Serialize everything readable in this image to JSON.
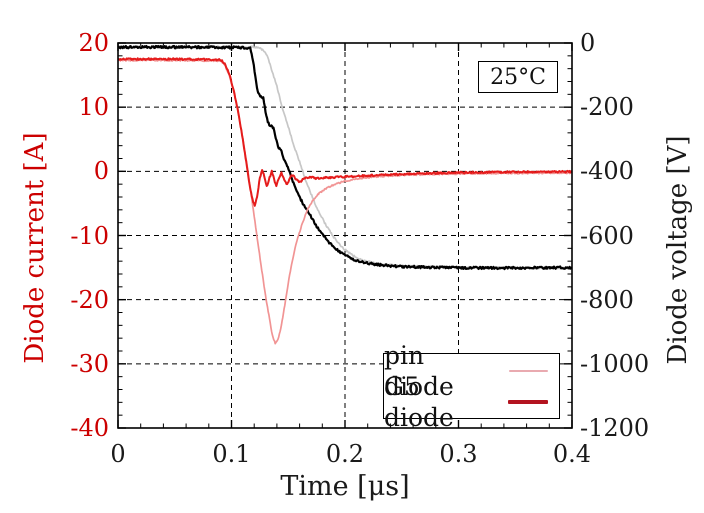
{
  "page": {
    "background": "#ffffff"
  },
  "annotation_box": {
    "text": "25°C"
  },
  "axis_titles": {
    "x": "Time [μs]",
    "y_left": "Diode current [A]",
    "y_right": "Diode voltage [V]"
  },
  "legend": {
    "items": [
      {
        "label": "pin diode",
        "sample_color": "#e9aab0",
        "sample_thickness": 2
      },
      {
        "label": "G5 diode",
        "sample_color": "#b3131f",
        "sample_thickness": 4
      }
    ]
  },
  "colors": {
    "left_axis_text": "#cc0000",
    "right_axis_text": "#1a1a1a",
    "grid": "#000000",
    "border": "#000000"
  },
  "chart_data": {
    "type": "line",
    "title": "",
    "xlabel": "Time [μs]",
    "ylabel_left": "Diode current [A]",
    "ylabel_right": "Diode voltage [V]",
    "annotation": "25°C",
    "grid": true,
    "legend_position": "bottom-right",
    "x_range": [
      0,
      0.4
    ],
    "y_left_range": [
      -40,
      20
    ],
    "y_right_range": [
      -1200,
      0
    ],
    "x_ticks": {
      "values": [
        0,
        0.1,
        0.2,
        0.3,
        0.4
      ],
      "labels": [
        "0",
        "0.1",
        "0.2",
        "0.3",
        "0.4"
      ]
    },
    "y_left_ticks": {
      "values": [
        20,
        10,
        0,
        -10,
        -20,
        -30,
        -40
      ],
      "labels": [
        "20",
        "10",
        "0",
        "-10",
        "-20",
        "-30",
        "-40"
      ]
    },
    "y_right_ticks": {
      "values": [
        0,
        -200,
        -400,
        -600,
        -800,
        -1000,
        -1200
      ],
      "labels": [
        "0",
        "-200",
        "-400",
        "-600",
        "-800",
        "-1000",
        "-1200"
      ]
    },
    "x_minor_step": 0.02,
    "y_minor_step_left": 2,
    "series": [
      {
        "name": "pin diode voltage",
        "axis": "right",
        "color": "#c7c7c7",
        "width": 1.7,
        "noise": 3,
        "seed": 11,
        "points": [
          [
            0,
            -12
          ],
          [
            0.06,
            -12
          ],
          [
            0.118,
            -12
          ],
          [
            0.124,
            -14
          ],
          [
            0.128,
            -22
          ],
          [
            0.132,
            -45
          ],
          [
            0.136,
            -90
          ],
          [
            0.14,
            -135
          ],
          [
            0.145,
            -205
          ],
          [
            0.15,
            -260
          ],
          [
            0.155,
            -320
          ],
          [
            0.16,
            -370
          ],
          [
            0.165,
            -425
          ],
          [
            0.17,
            -470
          ],
          [
            0.176,
            -520
          ],
          [
            0.182,
            -560
          ],
          [
            0.19,
            -605
          ],
          [
            0.198,
            -638
          ],
          [
            0.206,
            -660
          ],
          [
            0.215,
            -676
          ],
          [
            0.228,
            -688
          ],
          [
            0.25,
            -695
          ],
          [
            0.28,
            -698
          ],
          [
            0.32,
            -700
          ],
          [
            0.4,
            -702
          ]
        ]
      },
      {
        "name": "G5 diode voltage",
        "axis": "right",
        "color": "#000000",
        "width": 2.2,
        "noise": 4,
        "seed": 23,
        "points": [
          [
            0,
            -13
          ],
          [
            0.08,
            -13
          ],
          [
            0.1165,
            -15
          ],
          [
            0.119,
            -55
          ],
          [
            0.121,
            -105
          ],
          [
            0.1225,
            -140
          ],
          [
            0.124,
            -160
          ],
          [
            0.1265,
            -168
          ],
          [
            0.128,
            -172
          ],
          [
            0.13,
            -215
          ],
          [
            0.132,
            -248
          ],
          [
            0.134,
            -258
          ],
          [
            0.137,
            -263
          ],
          [
            0.139,
            -295
          ],
          [
            0.141,
            -325
          ],
          [
            0.1435,
            -330
          ],
          [
            0.146,
            -360
          ],
          [
            0.149,
            -385
          ],
          [
            0.1515,
            -402
          ],
          [
            0.154,
            -430
          ],
          [
            0.157,
            -458
          ],
          [
            0.16,
            -480
          ],
          [
            0.1635,
            -505
          ],
          [
            0.167,
            -522
          ],
          [
            0.171,
            -548
          ],
          [
            0.175,
            -572
          ],
          [
            0.18,
            -596
          ],
          [
            0.186,
            -622
          ],
          [
            0.192,
            -642
          ],
          [
            0.199,
            -660
          ],
          [
            0.207,
            -674
          ],
          [
            0.216,
            -684
          ],
          [
            0.228,
            -691
          ],
          [
            0.245,
            -696
          ],
          [
            0.27,
            -699
          ],
          [
            0.31,
            -701
          ],
          [
            0.36,
            -701
          ],
          [
            0.4,
            -700
          ]
        ]
      },
      {
        "name": "pin diode current",
        "axis": "left",
        "color": "#f19494",
        "width": 1.7,
        "noise": 0.12,
        "seed": 37,
        "points": [
          [
            0,
            17.3
          ],
          [
            0.05,
            17.3
          ],
          [
            0.0905,
            17.2
          ],
          [
            0.094,
            16.6
          ],
          [
            0.098,
            15
          ],
          [
            0.102,
            12.4
          ],
          [
            0.106,
            9
          ],
          [
            0.11,
            5
          ],
          [
            0.114,
            0.6
          ],
          [
            0.118,
            -4.4
          ],
          [
            0.122,
            -9.6
          ],
          [
            0.126,
            -14.6
          ],
          [
            0.13,
            -19.4
          ],
          [
            0.1335,
            -23
          ],
          [
            0.136,
            -25.6
          ],
          [
            0.1385,
            -26.8
          ],
          [
            0.141,
            -26.2
          ],
          [
            0.144,
            -24
          ],
          [
            0.147,
            -20.8
          ],
          [
            0.15,
            -17.4
          ],
          [
            0.153,
            -14.4
          ],
          [
            0.156,
            -12
          ],
          [
            0.159,
            -10
          ],
          [
            0.163,
            -7.8
          ],
          [
            0.167,
            -6
          ],
          [
            0.171,
            -4.7
          ],
          [
            0.176,
            -3.6
          ],
          [
            0.182,
            -2.8
          ],
          [
            0.19,
            -2.1
          ],
          [
            0.2,
            -1.5
          ],
          [
            0.213,
            -1.1
          ],
          [
            0.23,
            -0.8
          ],
          [
            0.255,
            -0.55
          ],
          [
            0.29,
            -0.4
          ],
          [
            0.34,
            -0.3
          ],
          [
            0.4,
            -0.25
          ]
        ]
      },
      {
        "name": "G5 diode current",
        "axis": "left",
        "color": "#e51c1c",
        "width": 2.0,
        "noise": 0.15,
        "seed": 51,
        "points": [
          [
            0,
            17.5
          ],
          [
            0.05,
            17.5
          ],
          [
            0.0905,
            17.4
          ],
          [
            0.094,
            16.8
          ],
          [
            0.098,
            15.2
          ],
          [
            0.102,
            12.6
          ],
          [
            0.106,
            9.2
          ],
          [
            0.11,
            5
          ],
          [
            0.113,
            1.4
          ],
          [
            0.116,
            -2.2
          ],
          [
            0.1185,
            -4.4
          ],
          [
            0.1205,
            -5.4
          ],
          [
            0.1225,
            -4
          ],
          [
            0.125,
            -1
          ],
          [
            0.127,
            0.2
          ],
          [
            0.129,
            -0.8
          ],
          [
            0.131,
            -2.4
          ],
          [
            0.1335,
            -1
          ],
          [
            0.1355,
            0
          ],
          [
            0.1375,
            -1.2
          ],
          [
            0.1395,
            -2.3
          ],
          [
            0.142,
            -0.9
          ],
          [
            0.144,
            -0.2
          ],
          [
            0.1465,
            -1.3
          ],
          [
            0.149,
            -2.1
          ],
          [
            0.1515,
            -1
          ],
          [
            0.154,
            -0.5
          ],
          [
            0.157,
            -1.3
          ],
          [
            0.16,
            -1.7
          ],
          [
            0.164,
            -1.1
          ],
          [
            0.169,
            -0.9
          ],
          [
            0.175,
            -1.1
          ],
          [
            0.183,
            -1
          ],
          [
            0.193,
            -0.9
          ],
          [
            0.21,
            -0.75
          ],
          [
            0.235,
            -0.55
          ],
          [
            0.265,
            -0.35
          ],
          [
            0.3,
            -0.2
          ],
          [
            0.35,
            -0.1
          ],
          [
            0.4,
            -0.05
          ]
        ]
      }
    ]
  }
}
